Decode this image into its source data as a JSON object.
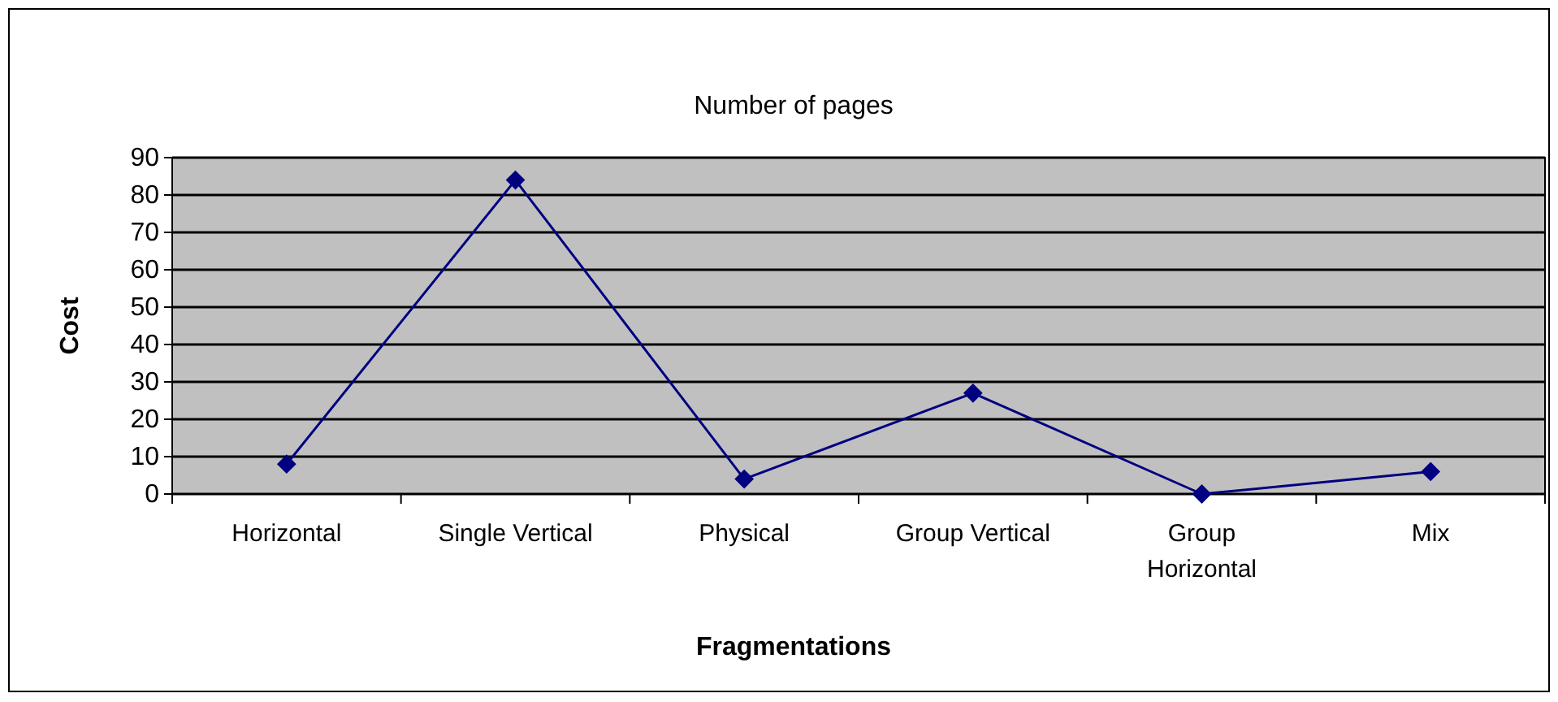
{
  "chart_data": {
    "type": "line",
    "title": "Number of pages",
    "xlabel": "Fragmentations",
    "ylabel": "Cost",
    "categories": [
      "Horizontal",
      "Single Vertical",
      "Physical",
      "Group Vertical",
      "Group Horizontal",
      "Mix"
    ],
    "series": [
      {
        "color": "#000080",
        "values": [
          8,
          84,
          4,
          27,
          0,
          6
        ]
      }
    ],
    "ylim": [
      0,
      90
    ],
    "yticks": [
      0,
      10,
      20,
      30,
      40,
      50,
      60,
      70,
      80,
      90
    ],
    "grid": "y",
    "marker": "diamond",
    "line_style": "solid"
  }
}
